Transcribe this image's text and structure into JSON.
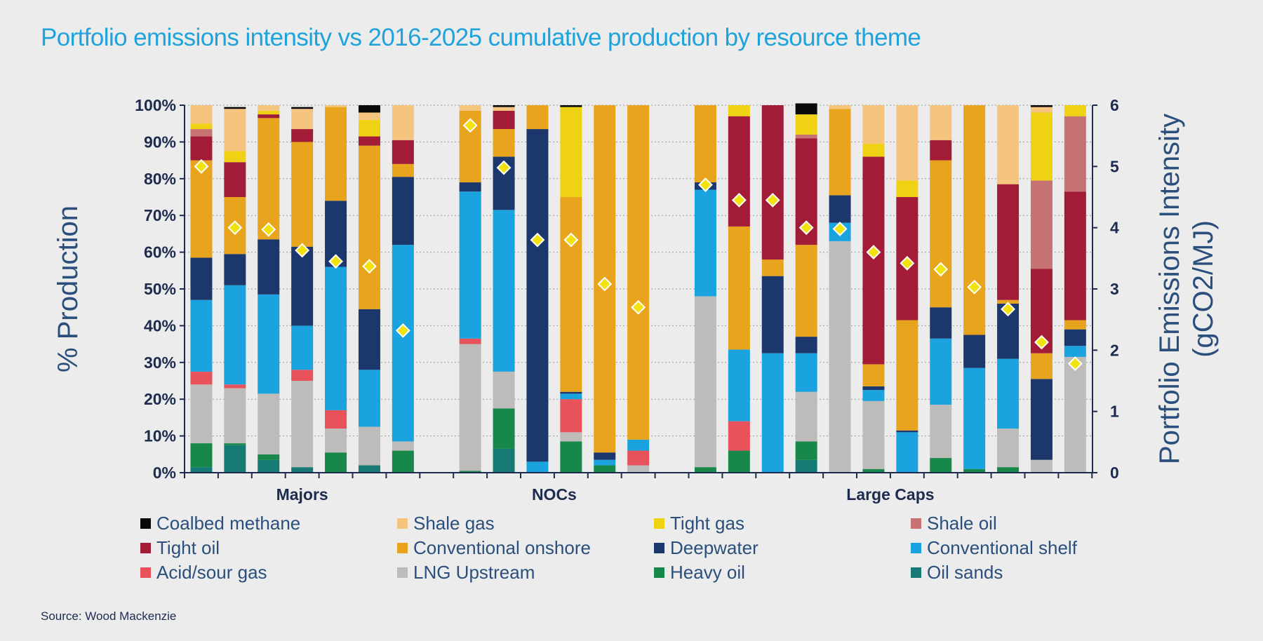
{
  "title": "Portfolio emissions intensity vs 2016-2025 cumulative production by resource theme",
  "source": "Source: Wood Mackenzie",
  "chart_data": {
    "type": "bar",
    "stacked": true,
    "title": "Portfolio emissions intensity vs 2016-2025 cumulative production by resource theme",
    "ylabel": "% Production",
    "y2label": "Portfolio Emissions Intensity (gCO2/MJ)",
    "ylim": [
      0,
      100
    ],
    "y2lim": [
      0,
      6
    ],
    "yticks": [
      "0%",
      "10%",
      "20%",
      "30%",
      "40%",
      "50%",
      "60%",
      "70%",
      "80%",
      "90%",
      "100%"
    ],
    "y2ticks": [
      "0",
      "1",
      "2",
      "3",
      "4",
      "5",
      "6"
    ],
    "grid": true,
    "legend_position": "bottom",
    "groups": [
      {
        "name": "Majors",
        "count": 7
      },
      {
        "name": "NOCs",
        "count": 6
      },
      {
        "name": "Large Caps",
        "count": 12
      }
    ],
    "series": [
      {
        "name": "Oil sands",
        "color": "#157a73"
      },
      {
        "name": "Heavy oil",
        "color": "#17884a"
      },
      {
        "name": "LNG Upstream",
        "color": "#bdbcba"
      },
      {
        "name": "Acid/sour gas",
        "color": "#e8525a"
      },
      {
        "name": "Conventional shelf",
        "color": "#1aa3df"
      },
      {
        "name": "Deepwater",
        "color": "#1c376b"
      },
      {
        "name": "Conventional onshore",
        "color": "#e8a41c"
      },
      {
        "name": "Tight oil",
        "color": "#a31c37"
      },
      {
        "name": "Shale oil",
        "color": "#c87373"
      },
      {
        "name": "Tight gas",
        "color": "#efd214"
      },
      {
        "name": "Shale gas",
        "color": "#f5c580"
      },
      {
        "name": "Coalbed methane",
        "color": "#0a0a0a"
      }
    ],
    "legend_order": [
      "Coalbed methane",
      "Shale gas",
      "Tight gas",
      "Shale oil",
      "Tight oil",
      "Conventional onshore",
      "Deepwater",
      "Conventional shelf",
      "Acid/sour gas",
      "LNG Upstream",
      "Heavy oil",
      "Oil sands"
    ],
    "bars": [
      {
        "group": "Majors",
        "values": [
          1.5,
          6.5,
          16,
          3.5,
          19.5,
          11.5,
          26.5,
          6.5,
          2,
          1.5,
          5,
          0
        ],
        "intensity": 5.0
      },
      {
        "group": "Majors",
        "values": [
          7.5,
          0.5,
          15,
          1,
          27,
          8.5,
          15.5,
          9.5,
          0,
          3,
          11.5,
          0.5
        ],
        "intensity": 4.0
      },
      {
        "group": "Majors",
        "values": [
          3.5,
          1.5,
          16.5,
          0,
          27,
          15,
          33,
          1,
          0,
          1,
          1.5,
          0
        ],
        "intensity": 3.97
      },
      {
        "group": "Majors",
        "values": [
          1.5,
          0,
          23.5,
          3,
          12,
          21.5,
          28.5,
          3.5,
          0,
          0,
          5.5,
          0.5
        ],
        "intensity": 3.63
      },
      {
        "group": "Majors",
        "values": [
          0,
          5.5,
          6.5,
          5,
          39,
          18,
          25.5,
          0,
          0,
          0,
          0.5,
          0
        ],
        "intensity": 3.45
      },
      {
        "group": "Majors",
        "values": [
          2,
          0,
          10.5,
          0,
          15.5,
          16.5,
          44.5,
          2.5,
          0,
          4.5,
          2,
          2
        ],
        "intensity": 3.37
      },
      {
        "group": "Majors",
        "values": [
          0,
          6,
          2.5,
          0,
          53.5,
          18.5,
          3.5,
          6.5,
          0,
          0,
          9.5,
          0
        ],
        "intensity": 2.32
      },
      {
        "group": "NOCs",
        "values": [
          0,
          0.5,
          34.5,
          1.5,
          40,
          2.5,
          19.5,
          0,
          0,
          0,
          1.5,
          0
        ],
        "intensity": 5.67
      },
      {
        "group": "NOCs",
        "values": [
          6.5,
          11,
          10,
          0,
          44,
          14.5,
          7.5,
          5,
          0,
          0,
          1,
          0.5
        ],
        "intensity": 4.98
      },
      {
        "group": "NOCs",
        "values": [
          0,
          0,
          0,
          0,
          3,
          90.5,
          6.5,
          0,
          0,
          0,
          0,
          0
        ],
        "intensity": 3.8
      },
      {
        "group": "NOCs",
        "values": [
          0,
          8.5,
          2.5,
          9,
          1.5,
          0.5,
          53,
          0,
          0,
          24.5,
          0,
          0.5
        ],
        "intensity": 3.8
      },
      {
        "group": "NOCs",
        "values": [
          0,
          2,
          0,
          0,
          1.5,
          2,
          94.5,
          0,
          0,
          0,
          0,
          0
        ],
        "intensity": 3.08
      },
      {
        "group": "NOCs",
        "values": [
          0,
          0,
          2,
          4,
          3,
          0,
          91,
          0,
          0,
          0,
          0,
          0
        ],
        "intensity": 2.7
      },
      {
        "group": "Large Caps",
        "values": [
          0,
          1.5,
          46.5,
          0,
          29,
          2,
          21,
          0,
          0,
          0,
          0,
          0
        ],
        "intensity": 4.7
      },
      {
        "group": "Large Caps",
        "values": [
          0,
          6,
          0,
          8,
          19.5,
          0,
          33.5,
          30,
          0,
          3,
          0,
          0
        ],
        "intensity": 4.45
      },
      {
        "group": "Large Caps",
        "values": [
          0,
          0,
          0,
          0,
          32.5,
          21,
          4.5,
          42,
          0,
          0,
          0,
          0
        ],
        "intensity": 4.45
      },
      {
        "group": "Large Caps",
        "values": [
          3.5,
          5,
          13.5,
          0,
          10.5,
          4.5,
          25,
          29,
          1,
          5.5,
          0,
          3
        ],
        "intensity": 4.0
      },
      {
        "group": "Large Caps",
        "values": [
          0,
          0,
          63,
          0,
          5,
          7.5,
          23.5,
          0,
          0,
          0,
          1,
          0
        ],
        "intensity": 3.98
      },
      {
        "group": "Large Caps",
        "values": [
          0,
          1,
          18.5,
          0,
          3,
          1,
          6,
          56.5,
          0,
          3.5,
          10.5,
          0
        ],
        "intensity": 3.6
      },
      {
        "group": "Large Caps",
        "values": [
          0,
          0,
          0,
          0,
          11,
          0.5,
          30,
          33.5,
          0,
          4.5,
          20.5,
          0
        ],
        "intensity": 3.42
      },
      {
        "group": "Large Caps",
        "values": [
          0,
          4,
          14.5,
          0,
          18,
          8.5,
          40,
          5.5,
          0,
          0,
          9.5,
          0
        ],
        "intensity": 3.32
      },
      {
        "group": "Large Caps",
        "values": [
          0,
          1,
          0,
          0,
          27.5,
          9,
          62.5,
          0,
          0,
          0,
          0,
          0
        ],
        "intensity": 3.03
      },
      {
        "group": "Large Caps",
        "values": [
          0,
          1.5,
          10.5,
          0,
          19,
          15,
          1,
          31.5,
          0,
          0,
          21.5,
          0
        ],
        "intensity": 2.67
      },
      {
        "group": "Large Caps",
        "values": [
          0,
          0,
          3.5,
          0,
          0,
          22,
          7,
          23,
          24,
          18.5,
          1.5,
          0.5
        ],
        "intensity": 2.13
      },
      {
        "group": "Large Caps",
        "values": [
          0,
          0,
          31.5,
          0,
          3,
          4.5,
          2.5,
          35,
          20.5,
          3,
          0,
          0
        ],
        "intensity": 1.78
      }
    ]
  }
}
